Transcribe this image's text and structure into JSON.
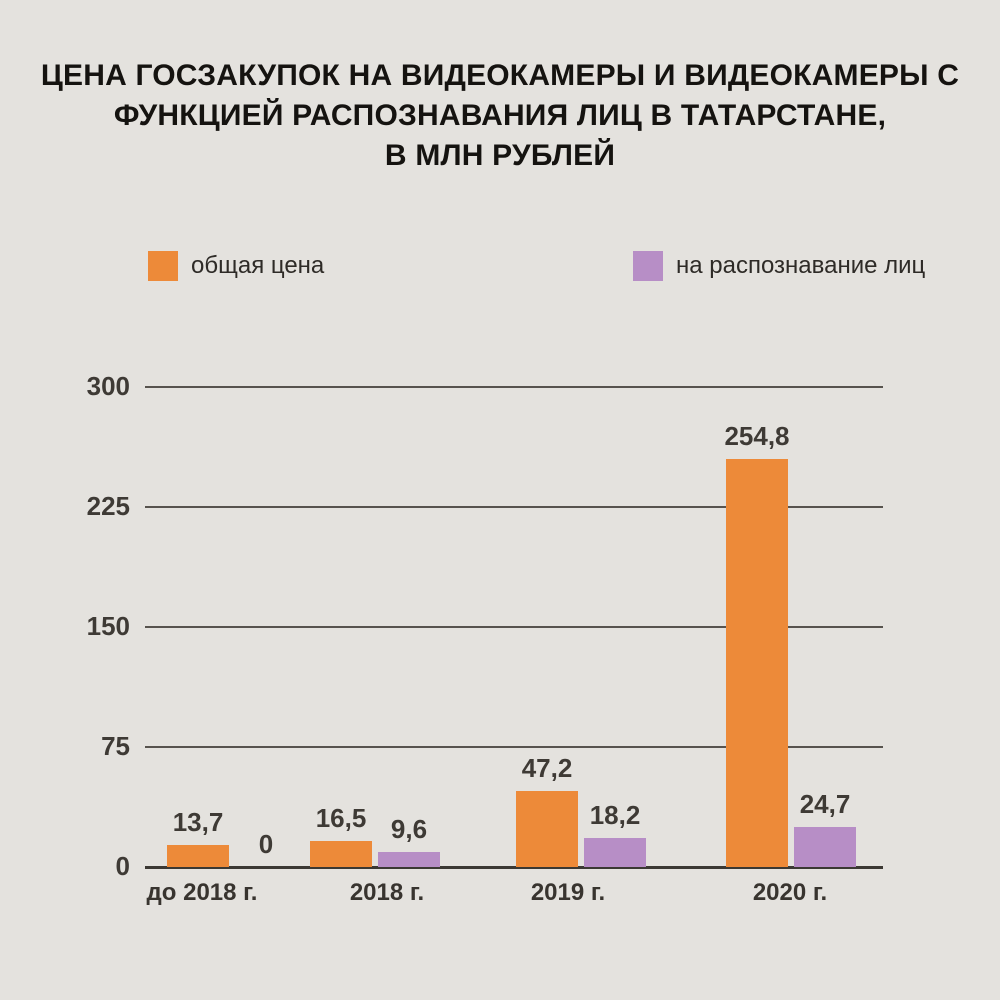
{
  "title_lines": [
    "ЦЕНА ГОСЗАКУПОК НА ВИДЕОКАМЕРЫ И ВИДЕОКАМЕРЫ С",
    "ФУНКЦИЕЙ РАСПОЗНАВАНИЯ ЛИЦ В ТАТАРСТАНЕ,",
    "В МЛН РУБЛЕЙ"
  ],
  "legend": {
    "items": [
      {
        "label": "общая цена",
        "color": "#ED8A39"
      },
      {
        "label": "на распознавание лиц",
        "color": "#B78EC6"
      }
    ]
  },
  "chart_data": {
    "type": "bar",
    "title": "ЦЕНА ГОСЗАКУПОК НА ВИДЕОКАМЕРЫ И ВИДЕОКАМЕРЫ С ФУНКЦИЕЙ РАСПОЗНАВАНИЯ ЛИЦ В ТАТАРСТАНЕ, В МЛН РУБЛЕЙ",
    "unit": "млн рублей",
    "categories": [
      "до 2018 г.",
      "2018 г.",
      "2019 г.",
      "2020 г."
    ],
    "series": [
      {
        "name": "общая цена",
        "color": "#ED8A39",
        "values": [
          13.7,
          16.5,
          47.2,
          254.8
        ],
        "labels": [
          "13,7",
          "16,5",
          "47,2",
          "254,8"
        ]
      },
      {
        "name": "на распознавание лиц",
        "color": "#B78EC6",
        "values": [
          0,
          9.6,
          18.2,
          24.7
        ],
        "labels": [
          "0",
          "9,6",
          "18,2",
          "24,7"
        ]
      }
    ],
    "y_ticks": [
      300,
      225,
      150,
      75,
      0
    ],
    "ylim": [
      0,
      300
    ],
    "grid": true,
    "legend_position": "top"
  },
  "colors": {
    "background": "#E4E2DE",
    "grid": "#57534E",
    "axis": "#3B3833",
    "text": "#3E3A35",
    "title": "#151310"
  }
}
